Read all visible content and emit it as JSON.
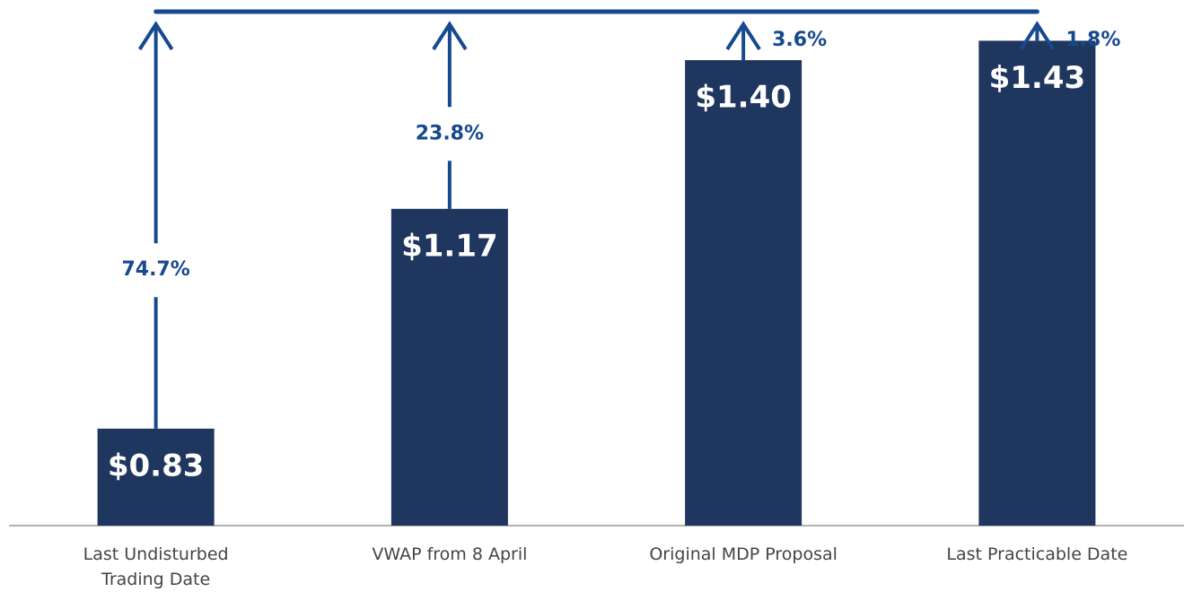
{
  "chart_data": {
    "type": "bar",
    "categories": [
      "Last Undisturbed Trading Date",
      "VWAP from 8 April",
      "Original MDP Proposal",
      "Last Practicable Date"
    ],
    "values": [
      0.83,
      1.17,
      1.4,
      1.43
    ],
    "value_labels": [
      "$0.83",
      "$1.17",
      "$1.40",
      "$1.43"
    ],
    "annotations": [
      "74.7%",
      "23.8%",
      "3.6%",
      "1.8%"
    ],
    "color": "#1f365f",
    "arrow_color": "#17498f",
    "ylim": [
      0.68,
      1.475
    ]
  }
}
